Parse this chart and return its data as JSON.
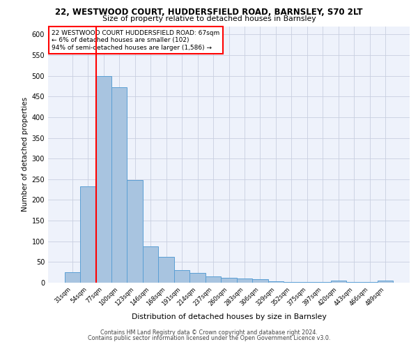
{
  "title_line1": "22, WESTWOOD COURT, HUDDERSFIELD ROAD, BARNSLEY, S70 2LT",
  "title_line2": "Size of property relative to detached houses in Barnsley",
  "xlabel": "Distribution of detached houses by size in Barnsley",
  "ylabel": "Number of detached properties",
  "footer_line1": "Contains HM Land Registry data © Crown copyright and database right 2024.",
  "footer_line2": "Contains public sector information licensed under the Open Government Licence v3.0.",
  "annotation_line1": "22 WESTWOOD COURT HUDDERSFIELD ROAD: 67sqm",
  "annotation_line2": "← 6% of detached houses are smaller (102)",
  "annotation_line3": "94% of semi-detached houses are larger (1,586) →",
  "bar_labels": [
    "31sqm",
    "54sqm",
    "77sqm",
    "100sqm",
    "123sqm",
    "146sqm",
    "168sqm",
    "191sqm",
    "214sqm",
    "237sqm",
    "260sqm",
    "283sqm",
    "306sqm",
    "329sqm",
    "352sqm",
    "375sqm",
    "397sqm",
    "420sqm",
    "443sqm",
    "466sqm",
    "489sqm"
  ],
  "bar_values": [
    25,
    232,
    500,
    472,
    248,
    88,
    62,
    30,
    23,
    15,
    11,
    10,
    8,
    4,
    2,
    2,
    2,
    5,
    2,
    2,
    5
  ],
  "bar_color": "#a8c4e0",
  "bar_edge_color": "#5a9fd4",
  "vline_x": 1.5,
  "vline_color": "red",
  "annotation_box_color": "red",
  "background_color": "#eef2fb",
  "grid_color": "#c8cfe0",
  "ylim": [
    0,
    620
  ],
  "yticks": [
    0,
    50,
    100,
    150,
    200,
    250,
    300,
    350,
    400,
    450,
    500,
    550,
    600
  ]
}
